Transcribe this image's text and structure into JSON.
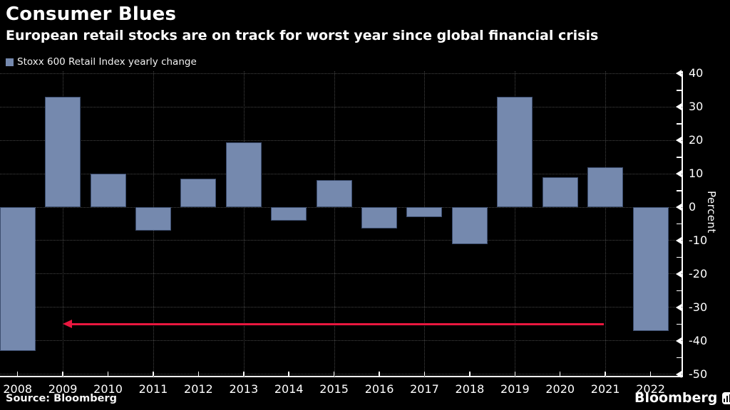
{
  "header": {
    "title": "Consumer Blues",
    "subtitle": "European retail stocks are on track for worst year since global financial crisis"
  },
  "legend": {
    "label": "Stoxx 600 Retail Index yearly change",
    "swatch_color": "#7589AE"
  },
  "footer": {
    "source": "Source: Bloomberg",
    "brand": "Bloomberg"
  },
  "colors": {
    "background": "#000000",
    "bar_fill": "#7589AE",
    "bar_border": "#3C4D6E",
    "grid": "#454545",
    "axis": "#FFFFFF",
    "text": "#FFFFFF",
    "annotation_red": "#E9173F"
  },
  "chart_data": {
    "type": "bar",
    "title": "Consumer Blues",
    "subtitle": "European retail stocks are on track for worst year since global financial crisis",
    "series_name": "Stoxx 600 Retail Index yearly change",
    "categories": [
      "2008",
      "2009",
      "2010",
      "2011",
      "2012",
      "2013",
      "2014",
      "2015",
      "2016",
      "2017",
      "2018",
      "2019",
      "2020",
      "2021",
      "2022"
    ],
    "values": [
      -43,
      33,
      10,
      -7,
      8.5,
      19.5,
      -4,
      8,
      -6.5,
      -3,
      -11,
      33,
      9,
      12,
      -37
    ],
    "xlabel": "",
    "ylabel": "Percent",
    "ylim": [
      -50,
      40
    ],
    "yticks": [
      40,
      30,
      20,
      10,
      0,
      -10,
      -20,
      -30,
      -40,
      -50
    ],
    "yticks_minor": [
      35,
      25,
      15,
      5,
      -5,
      -15,
      -25,
      -35,
      -45
    ],
    "grid": "dotted",
    "gridlines_vertical_at": [
      "2009",
      "2011",
      "2013",
      "2015",
      "2017",
      "2019",
      "2021"
    ],
    "legend_position": "top-left",
    "annotation": {
      "type": "arrow",
      "direction": "left",
      "y": -35,
      "from_category": "2021",
      "to_category": "2009",
      "color": "#E9173F"
    }
  }
}
